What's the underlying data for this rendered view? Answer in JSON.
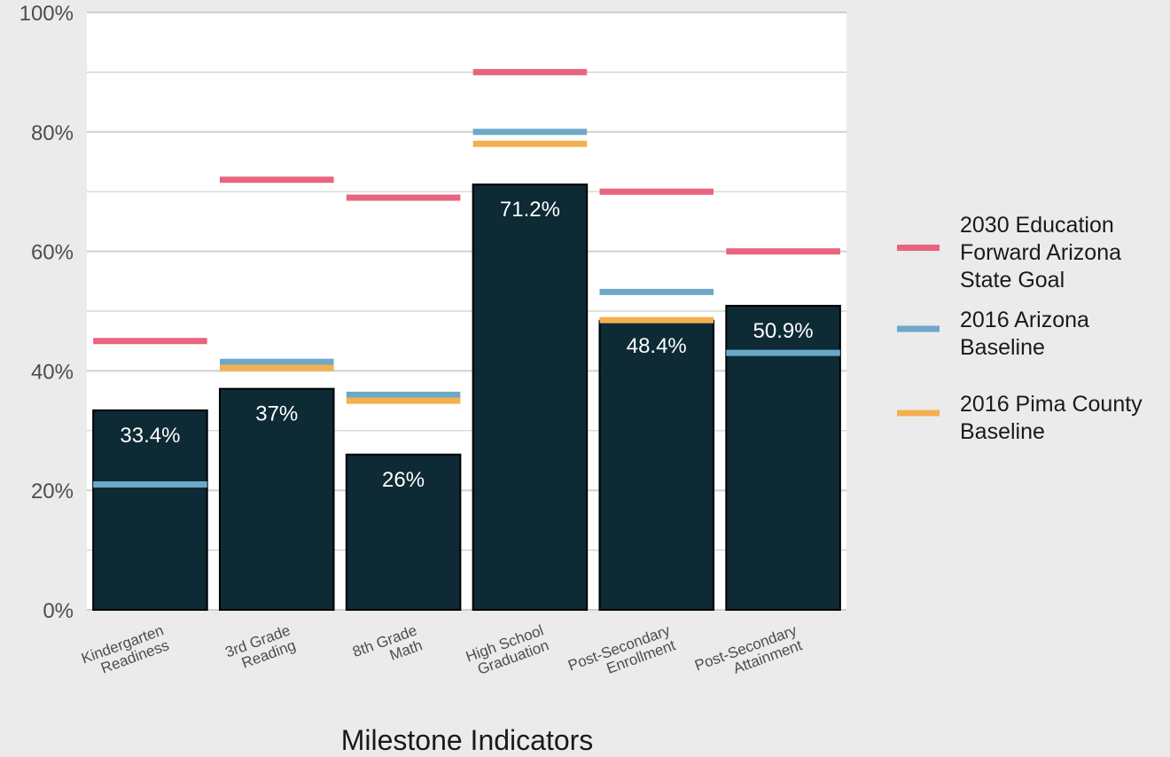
{
  "chart_data": {
    "type": "bar",
    "title": "",
    "xlabel": "Milestone Indicators",
    "ylabel": "",
    "ylim": [
      0,
      100
    ],
    "yticks": [
      0,
      20,
      40,
      60,
      80,
      100
    ],
    "ytick_suffix": "%",
    "grid": true,
    "legend_position": "right",
    "categories": [
      [
        "Kindergarten",
        "Readiness"
      ],
      [
        "3rd Grade",
        "Reading"
      ],
      [
        "8th Grade",
        "Math"
      ],
      [
        "High School",
        "Graduation"
      ],
      [
        "Post-Secondary",
        "Enrollment"
      ],
      [
        "Post-Secondary",
        "Attainment"
      ]
    ],
    "values": [
      33.4,
      37,
      26,
      71.2,
      48.4,
      50.9
    ],
    "value_labels": [
      "33.4%",
      "37%",
      "26%",
      "71.2%",
      "48.4%",
      "50.9%"
    ],
    "bar_color": "#0d2a35",
    "reference_series": [
      {
        "name": "2030 Education Forward Arizona State Goal",
        "legend_lines": [
          "2030 Education",
          "Forward Arizona",
          "State Goal"
        ],
        "color": "#e8647f",
        "values": [
          45,
          72,
          69,
          90,
          70,
          60
        ]
      },
      {
        "name": "2016 Arizona Baseline",
        "legend_lines": [
          "2016 Arizona",
          "Baseline"
        ],
        "color": "#6ea8c8",
        "values": [
          21,
          41.5,
          36,
          80,
          53.2,
          43
        ]
      },
      {
        "name": "2016 Pima County Baseline",
        "legend_lines": [
          "2016 Pima County",
          "Baseline"
        ],
        "color": "#f4b04f",
        "values": [
          null,
          40.5,
          35,
          78,
          48.5,
          null
        ]
      }
    ]
  }
}
